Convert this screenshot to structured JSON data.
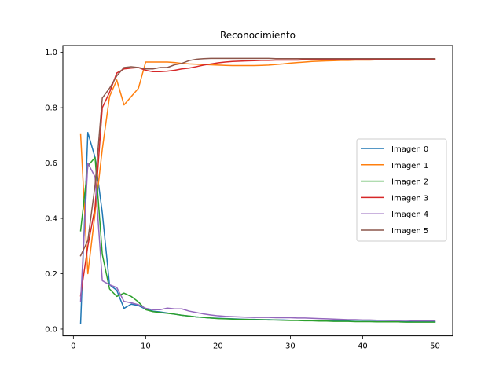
{
  "chart_data": {
    "type": "line",
    "title": "Reconocimiento",
    "xlabel": "",
    "ylabel": "",
    "xlim": [
      -1.45,
      52.45
    ],
    "ylim": [
      -0.0245,
      1.0245
    ],
    "xticks": [
      0,
      10,
      20,
      30,
      40,
      50
    ],
    "yticks": [
      0.0,
      0.2,
      0.4,
      0.6,
      0.8,
      1.0
    ],
    "xtick_labels": [
      "0",
      "10",
      "20",
      "30",
      "40",
      "50"
    ],
    "ytick_labels": [
      "0.0",
      "0.2",
      "0.4",
      "0.6",
      "0.8",
      "1.0"
    ],
    "grid": false,
    "legend_position": "center-right",
    "x": [
      1,
      2,
      3,
      4,
      5,
      6,
      7,
      8,
      9,
      10,
      11,
      12,
      13,
      14,
      15,
      16,
      17,
      18,
      19,
      20,
      21,
      22,
      23,
      24,
      25,
      26,
      27,
      28,
      29,
      30,
      31,
      32,
      33,
      34,
      35,
      36,
      37,
      38,
      39,
      40,
      41,
      42,
      43,
      44,
      45,
      46,
      47,
      48,
      49,
      50
    ],
    "series": [
      {
        "name": "Imagen 0",
        "color": "#1f77b4",
        "values": [
          0.02,
          0.71,
          0.62,
          0.42,
          0.16,
          0.14,
          0.075,
          0.09,
          0.085,
          0.072,
          0.065,
          0.062,
          0.058,
          0.054,
          0.05,
          0.047,
          0.044,
          0.042,
          0.04,
          0.039,
          0.038,
          0.037,
          0.036,
          0.035,
          0.035,
          0.034,
          0.034,
          0.033,
          0.033,
          0.032,
          0.032,
          0.031,
          0.031,
          0.03,
          0.03,
          0.029,
          0.029,
          0.029,
          0.028,
          0.028,
          0.028,
          0.027,
          0.027,
          0.027,
          0.027,
          0.026,
          0.026,
          0.026,
          0.026,
          0.026
        ]
      },
      {
        "name": "Imagen 1",
        "color": "#ff7f0e",
        "values": [
          0.705,
          0.2,
          0.42,
          0.65,
          0.84,
          0.9,
          0.81,
          0.84,
          0.87,
          0.965,
          0.965,
          0.965,
          0.965,
          0.963,
          0.96,
          0.958,
          0.957,
          0.956,
          0.955,
          0.954,
          0.953,
          0.952,
          0.952,
          0.952,
          0.952,
          0.953,
          0.954,
          0.956,
          0.958,
          0.961,
          0.963,
          0.965,
          0.967,
          0.968,
          0.969,
          0.97,
          0.971,
          0.971,
          0.972,
          0.972,
          0.972,
          0.973,
          0.973,
          0.973,
          0.973,
          0.974,
          0.974,
          0.974,
          0.974,
          0.975
        ]
      },
      {
        "name": "Imagen 2",
        "color": "#2ca02c",
        "values": [
          0.355,
          0.59,
          0.62,
          0.27,
          0.145,
          0.118,
          0.13,
          0.118,
          0.098,
          0.07,
          0.063,
          0.06,
          0.057,
          0.054,
          0.05,
          0.047,
          0.044,
          0.042,
          0.04,
          0.038,
          0.037,
          0.036,
          0.035,
          0.035,
          0.034,
          0.034,
          0.033,
          0.033,
          0.032,
          0.031,
          0.031,
          0.03,
          0.03,
          0.029,
          0.029,
          0.028,
          0.028,
          0.028,
          0.027,
          0.027,
          0.027,
          0.026,
          0.026,
          0.026,
          0.026,
          0.025,
          0.025,
          0.025,
          0.025,
          0.025
        ]
      },
      {
        "name": "Imagen 3",
        "color": "#d62728",
        "values": [
          0.12,
          0.3,
          0.44,
          0.8,
          0.855,
          0.925,
          0.94,
          0.943,
          0.945,
          0.935,
          0.93,
          0.93,
          0.932,
          0.935,
          0.94,
          0.943,
          0.948,
          0.954,
          0.958,
          0.962,
          0.965,
          0.967,
          0.968,
          0.969,
          0.97,
          0.971,
          0.971,
          0.972,
          0.972,
          0.972,
          0.972,
          0.973,
          0.973,
          0.973,
          0.973,
          0.973,
          0.973,
          0.973,
          0.973,
          0.973,
          0.973,
          0.973,
          0.973,
          0.973,
          0.973,
          0.973,
          0.973,
          0.973,
          0.973,
          0.973
        ]
      },
      {
        "name": "Imagen 4",
        "color": "#9467bd",
        "values": [
          0.1,
          0.6,
          0.55,
          0.175,
          0.16,
          0.15,
          0.1,
          0.095,
          0.088,
          0.075,
          0.07,
          0.07,
          0.076,
          0.073,
          0.073,
          0.065,
          0.06,
          0.055,
          0.051,
          0.048,
          0.046,
          0.045,
          0.044,
          0.043,
          0.042,
          0.042,
          0.042,
          0.041,
          0.041,
          0.041,
          0.04,
          0.04,
          0.039,
          0.038,
          0.037,
          0.036,
          0.035,
          0.034,
          0.034,
          0.033,
          0.033,
          0.032,
          0.032,
          0.031,
          0.031,
          0.031,
          0.03,
          0.03,
          0.03,
          0.03
        ]
      },
      {
        "name": "Imagen 5",
        "color": "#8c564b",
        "values": [
          0.265,
          0.32,
          0.52,
          0.835,
          0.87,
          0.915,
          0.945,
          0.948,
          0.945,
          0.94,
          0.94,
          0.945,
          0.945,
          0.955,
          0.96,
          0.97,
          0.975,
          0.977,
          0.978,
          0.978,
          0.978,
          0.978,
          0.978,
          0.978,
          0.978,
          0.978,
          0.978,
          0.977,
          0.977,
          0.977,
          0.977,
          0.977,
          0.977,
          0.977,
          0.977,
          0.977,
          0.977,
          0.977,
          0.977,
          0.977,
          0.977,
          0.977,
          0.977,
          0.977,
          0.977,
          0.977,
          0.977,
          0.977,
          0.977,
          0.977
        ]
      }
    ]
  }
}
